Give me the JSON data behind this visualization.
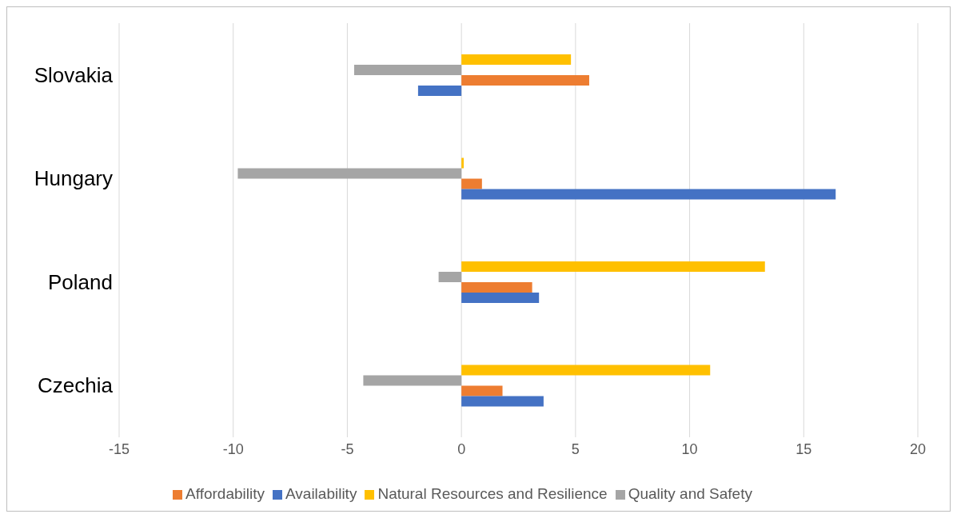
{
  "chart_data": {
    "type": "bar",
    "orientation": "horizontal",
    "categories": [
      "Slovakia",
      "Hungary",
      "Poland",
      "Czechia"
    ],
    "series": [
      {
        "name": "Natural Resources and Resilience",
        "color": "#ffc000",
        "values": [
          4.8,
          0.1,
          13.3,
          10.9
        ]
      },
      {
        "name": "Quality and Safety",
        "color": "#a5a5a5",
        "values": [
          -4.7,
          -9.8,
          -1.0,
          -4.3
        ]
      },
      {
        "name": "Affordability",
        "color": "#ed7d31",
        "values": [
          5.6,
          0.9,
          3.1,
          1.8
        ]
      },
      {
        "name": "Availability",
        "color": "#4472c4",
        "values": [
          -1.9,
          16.4,
          3.4,
          3.6
        ]
      }
    ],
    "xlim": [
      -15,
      20
    ],
    "xticks": [
      -15,
      -10,
      -5,
      0,
      5,
      10,
      15,
      20
    ],
    "grid": "x",
    "legend": "bottom"
  }
}
